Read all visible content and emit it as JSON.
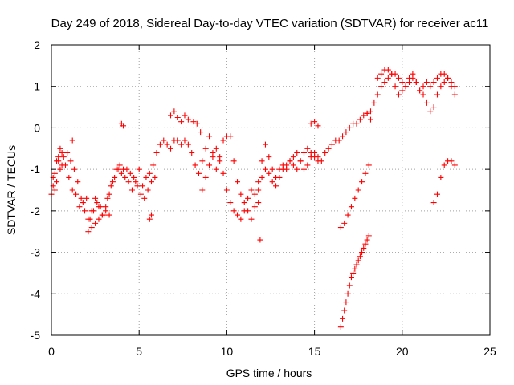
{
  "chart_data": {
    "type": "scatter",
    "title": "Day 249 of 2018, Sidereal Day-to-day VTEC variation (SDTVAR) for receiver ac11",
    "xlabel": "GPS time / hours",
    "ylabel": "SDTVAR / TECUs",
    "xlim": [
      0,
      25
    ],
    "ylim": [
      -5,
      2
    ],
    "xticks": [
      0,
      5,
      10,
      15,
      20,
      25
    ],
    "xtick_labels": [
      "0",
      "5",
      "10",
      "15",
      "20",
      "25"
    ],
    "yticks": [
      -5,
      -4,
      -3,
      -2,
      -1,
      0,
      1,
      2
    ],
    "ytick_labels": [
      "-5",
      "-4",
      "-3",
      "-2",
      "-1",
      "0",
      "1",
      "2"
    ],
    "grid": true,
    "marker": "+",
    "series": [
      {
        "name": "SDTVAR",
        "color": "#ff0000",
        "tracks": [
          {
            "x": [
              0.0,
              0.2,
              0.4,
              0.6,
              0.8,
              1.0,
              1.2,
              1.4,
              1.6,
              1.8,
              2.0,
              2.2,
              2.4,
              2.6,
              2.8,
              3.0,
              3.2,
              3.4,
              3.6,
              3.8,
              4.0,
              4.2,
              4.4,
              4.6,
              4.8,
              5.0,
              5.2,
              5.4,
              5.6,
              5.8,
              6.0,
              6.2,
              6.4,
              6.6,
              6.8,
              7.0,
              7.2,
              7.4,
              7.6,
              7.8,
              8.0,
              8.2,
              8.4,
              8.6,
              8.8,
              9.0,
              9.2,
              9.4,
              9.6,
              9.8,
              10.0,
              10.2,
              10.4,
              10.6,
              10.8,
              11.0,
              11.2,
              11.4,
              11.6,
              11.8,
              12.0,
              12.2,
              12.4,
              12.6,
              12.8,
              13.0,
              13.2,
              13.4,
              13.6,
              13.8,
              14.0,
              14.2,
              14.4,
              14.6,
              14.8,
              15.0,
              15.2,
              15.4,
              15.6,
              15.8,
              16.0,
              16.2,
              16.4,
              16.6,
              16.8,
              17.0,
              17.2,
              17.4,
              17.6,
              17.8,
              18.0,
              18.2
            ],
            "y": [
              -1.6,
              -1.1,
              -0.8,
              -0.6,
              -0.9,
              -1.2,
              -1.5,
              -1.6,
              -1.9,
              -1.8,
              -1.7,
              -2.2,
              -2.0,
              -1.8,
              -1.9,
              -2.1,
              -1.7,
              -1.4,
              -1.2,
              -1.0,
              -1.1,
              -1.2,
              -1.3,
              -1.5,
              -1.3,
              -1.0,
              -1.4,
              -1.2,
              -1.1,
              -0.9,
              -0.6,
              -0.4,
              -0.3,
              -0.4,
              -0.5,
              -0.3,
              -0.3,
              -0.4,
              -0.3,
              -0.4,
              -0.6,
              -0.9,
              -1.1,
              -0.8,
              -0.5,
              -0.2,
              -0.6,
              -1.0,
              -0.7,
              -0.3,
              -0.2,
              -0.2,
              -0.8,
              -1.3,
              -1.6,
              -1.8,
              -2.0,
              -2.2,
              -1.9,
              -1.3,
              -0.8,
              -0.4,
              -0.7,
              -1.0,
              -1.2,
              -1.0,
              -0.9,
              -1.0,
              -0.8,
              -0.7,
              -0.6,
              -0.8,
              -1.0,
              -0.9,
              -0.7,
              -0.6,
              -0.7,
              -0.8,
              -0.6,
              -0.5,
              -0.4,
              -0.3,
              -0.3,
              -0.2,
              -0.1,
              0.0,
              0.1,
              0.1,
              0.2,
              0.3,
              0.35,
              0.2
            ]
          },
          {
            "x": [
              0.1,
              0.3,
              0.5,
              0.7,
              0.9,
              1.1,
              1.3,
              1.5,
              1.7,
              1.9,
              2.1,
              2.3,
              2.5,
              2.7,
              2.9,
              3.1,
              3.3,
              3.5,
              3.7,
              3.9,
              4.1,
              4.3,
              4.5,
              4.7,
              4.9,
              5.1,
              5.3,
              5.5,
              5.7,
              5.9
            ],
            "y": [
              -1.2,
              -1.3,
              -1.0,
              -0.7,
              -0.6,
              -0.8,
              -1.0,
              -1.3,
              -1.7,
              -2.0,
              -2.2,
              -2.0,
              -1.7,
              -1.9,
              -2.1,
              -1.9,
              -1.6,
              -1.3,
              -1.0,
              -0.9,
              -1.0,
              -1.0,
              -1.1,
              -1.2,
              -1.4,
              -1.6,
              -1.7,
              -1.5,
              -1.3,
              -1.2
            ]
          },
          {
            "x": [
              2.1,
              2.3,
              2.5,
              2.7,
              2.9,
              3.1,
              3.3
            ],
            "y": [
              -2.5,
              -2.4,
              -2.3,
              -2.2,
              -2.1,
              -2.0,
              -2.1
            ]
          },
          {
            "x": [
              8.6,
              8.8,
              9.0,
              9.2,
              9.4,
              9.6,
              9.8,
              10.0,
              10.2,
              10.4,
              10.6,
              10.8,
              11.0,
              11.2,
              11.4,
              11.6,
              11.8
            ],
            "y": [
              -1.5,
              -1.2,
              -0.9,
              -0.7,
              -0.5,
              -0.8,
              -1.1,
              -1.5,
              -1.8,
              -2.0,
              -2.1,
              -2.2,
              -2.0,
              -1.7,
              -1.5,
              -1.6,
              -1.8
            ]
          },
          {
            "x": [
              11.8,
              12.0,
              12.2,
              12.4,
              12.6,
              12.8,
              13.0,
              13.2,
              13.4,
              13.6,
              13.8,
              14.0,
              14.2,
              14.4,
              14.6,
              14.8,
              15.0,
              15.2
            ],
            "y": [
              -1.5,
              -1.2,
              -1.0,
              -1.1,
              -1.3,
              -1.4,
              -1.2,
              -1.0,
              -0.9,
              -0.8,
              -0.9,
              -1.0,
              -0.8,
              -0.6,
              -0.5,
              -0.6,
              -0.7,
              -0.8
            ]
          },
          {
            "x": [
              18.0,
              18.2,
              18.4,
              18.6,
              18.8,
              19.0,
              19.2,
              19.4,
              19.6,
              19.8,
              20.0,
              20.2,
              20.4,
              20.6,
              20.8,
              21.0,
              21.2,
              21.4,
              21.6,
              21.8,
              22.0,
              22.2,
              22.4,
              22.6,
              22.8,
              23.0
            ],
            "y": [
              0.35,
              0.4,
              0.6,
              0.8,
              1.0,
              1.1,
              1.2,
              1.3,
              1.3,
              1.2,
              1.1,
              1.0,
              1.1,
              1.2,
              1.1,
              0.9,
              1.0,
              1.1,
              1.0,
              1.1,
              1.2,
              1.3,
              1.3,
              1.2,
              1.0,
              0.8
            ]
          },
          {
            "x": [
              18.6,
              18.8,
              19.0,
              19.2,
              19.4,
              19.6,
              19.8,
              20.0,
              20.2,
              20.4,
              20.6,
              20.8,
              21.0,
              21.2,
              21.4,
              21.6,
              21.8,
              22.0,
              22.2,
              22.4,
              22.6,
              22.8,
              23.0
            ],
            "y": [
              1.2,
              1.3,
              1.4,
              1.4,
              1.3,
              1.0,
              0.8,
              0.9,
              1.0,
              1.2,
              1.3,
              1.1,
              0.9,
              0.8,
              0.6,
              0.4,
              0.5,
              0.8,
              1.0,
              1.1,
              1.2,
              1.1,
              1.0
            ]
          },
          {
            "x": [
              16.5,
              16.7,
              16.9,
              17.1,
              17.3,
              17.5,
              17.7,
              17.9,
              18.1
            ],
            "y": [
              -2.4,
              -2.3,
              -2.1,
              -1.9,
              -1.7,
              -1.5,
              -1.3,
              -1.1,
              -0.9
            ]
          },
          {
            "x": [
              16.5,
              16.6,
              16.7,
              16.8,
              16.9,
              17.0,
              17.1,
              17.2,
              17.3,
              17.4,
              17.5,
              17.6,
              17.7,
              17.8,
              17.9,
              18.0,
              18.1
            ],
            "y": [
              -4.8,
              -4.6,
              -4.4,
              -4.2,
              -4.0,
              -3.8,
              -3.6,
              -3.5,
              -3.4,
              -3.3,
              -3.2,
              -3.1,
              -3.0,
              -2.9,
              -2.8,
              -2.7,
              -2.6
            ]
          },
          {
            "x": [
              21.8,
              22.0,
              22.2,
              22.4,
              22.6,
              22.8,
              23.0
            ],
            "y": [
              -1.8,
              -1.6,
              -1.2,
              -0.9,
              -0.8,
              -0.8,
              -0.9
            ]
          },
          {
            "x": [
              0.1,
              0.2,
              0.3,
              0.4,
              0.5,
              0.6,
              1.2,
              4.0,
              4.1,
              5.6,
              5.7,
              6.8,
              7.0,
              7.2,
              7.4,
              7.6,
              7.8,
              8.1,
              8.3,
              8.5,
              11.9,
              14.8,
              15.0,
              15.2
            ],
            "y": [
              -1.4,
              -1.5,
              -0.8,
              -0.7,
              -0.5,
              -0.9,
              -0.3,
              0.1,
              0.05,
              -2.2,
              -2.1,
              0.3,
              0.4,
              0.25,
              0.15,
              0.3,
              0.2,
              0.15,
              0.1,
              -0.1,
              -2.7,
              0.1,
              0.15,
              0.05
            ]
          }
        ]
      }
    ]
  }
}
